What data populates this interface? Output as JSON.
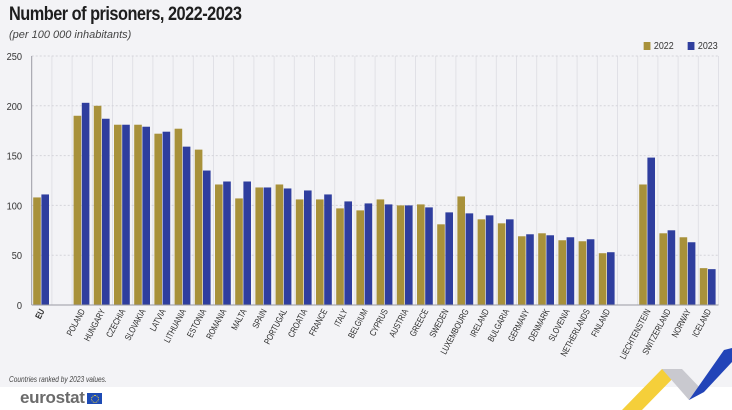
{
  "header": {
    "title": "Number of prisoners, 2022-2023",
    "subtitle": "(per 100 000 inhabitants)"
  },
  "footer": {
    "note": "Countries ranked by 2023 values.",
    "logo_text": "eurostat"
  },
  "colors": {
    "series_2022": "#a8913a",
    "series_2023": "#2f3e9e",
    "grid": "#d8d8de",
    "axis": "#9a9aa3"
  },
  "chart_data": {
    "type": "bar",
    "title": "Number of prisoners, 2022-2023",
    "subtitle": "(per 100 000 inhabitants)",
    "xlabel": "",
    "ylabel": "",
    "ylim": [
      0,
      250
    ],
    "yticks": [
      0,
      50,
      100,
      150,
      200,
      250
    ],
    "grid": true,
    "legend_position": "top-right",
    "groups": [
      {
        "name": "eu",
        "categories": [
          "EU"
        ]
      },
      {
        "name": "member-states",
        "categories": [
          "POLAND",
          "HUNGARY",
          "CZECHIA",
          "SLOVAKIA",
          "LATVIA",
          "LITHUANIA",
          "ESTONIA",
          "ROMANIA",
          "MALTA",
          "SPAIN",
          "PORTUGAL",
          "CROATIA",
          "FRANCE",
          "ITALY",
          "BELGIUM",
          "CYPRUS",
          "AUSTRIA",
          "GREECE",
          "SWEDEN",
          "LUXEMBOURG",
          "IRELAND",
          "BULGARIA",
          "GERMANY",
          "DENMARK",
          "SLOVENIA",
          "NETHERLANDS",
          "FINLAND"
        ]
      },
      {
        "name": "efta",
        "categories": [
          "LIECHTENSTEIN",
          "SWITZERLAND",
          "NORWAY",
          "ICELAND"
        ]
      }
    ],
    "categories": [
      "EU",
      "POLAND",
      "HUNGARY",
      "CZECHIA",
      "SLOVAKIA",
      "LATVIA",
      "LITHUANIA",
      "ESTONIA",
      "ROMANIA",
      "MALTA",
      "SPAIN",
      "PORTUGAL",
      "CROATIA",
      "FRANCE",
      "ITALY",
      "BELGIUM",
      "CYPRUS",
      "AUSTRIA",
      "GREECE",
      "SWEDEN",
      "LUXEMBOURG",
      "IRELAND",
      "BULGARIA",
      "GERMANY",
      "DENMARK",
      "SLOVENIA",
      "NETHERLANDS",
      "FINLAND",
      "LIECHTENSTEIN",
      "SWITZERLAND",
      "NORWAY",
      "ICELAND"
    ],
    "series": [
      {
        "name": "2022",
        "values": [
          108,
          190,
          200,
          181,
          181,
          172,
          177,
          156,
          121,
          107,
          118,
          121,
          106,
          106,
          97,
          95,
          106,
          100,
          101,
          81,
          109,
          86,
          82,
          69,
          72,
          65,
          64,
          52,
          121,
          72,
          68,
          37
        ]
      },
      {
        "name": "2023",
        "values": [
          111,
          203,
          187,
          181,
          179,
          174,
          159,
          135,
          124,
          124,
          118,
          117,
          115,
          111,
          104,
          102,
          101,
          100,
          98,
          93,
          92,
          90,
          86,
          71,
          70,
          68,
          66,
          53,
          148,
          75,
          63,
          36
        ]
      }
    ]
  }
}
